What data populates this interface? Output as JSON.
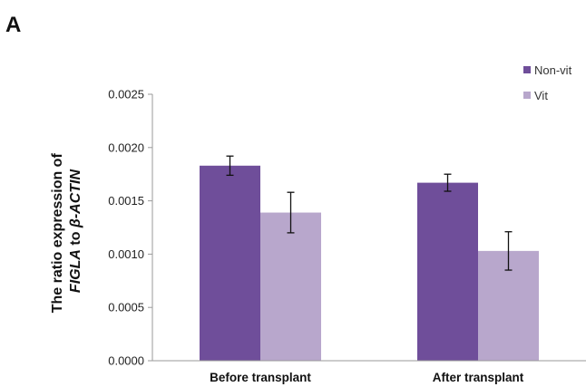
{
  "panel_label": "A",
  "colors": {
    "Non-vit": "#6f4e9a",
    "Vit": "#b8a7cc",
    "axis": "#9a9a9a",
    "errorbar": "#111111"
  },
  "chart_data": {
    "type": "bar",
    "categories": [
      "Before transplant",
      "After transplant"
    ],
    "series": [
      {
        "name": "Non-vit",
        "values": [
          0.00183,
          0.00167
        ],
        "errors": [
          9e-05,
          8e-05
        ]
      },
      {
        "name": "Vit",
        "values": [
          0.00139,
          0.00103
        ],
        "errors": [
          0.00019,
          0.00018
        ]
      }
    ],
    "ylabel_line1": "The ratio expression of",
    "ylabel_line2_parts": [
      "FIGLA",
      " to ",
      "β-ACTIN"
    ],
    "ylim": [
      0,
      0.0025
    ],
    "yticks": [
      "0.0000",
      "0.0005",
      "0.0010",
      "0.0015",
      "0.0020",
      "0.0025"
    ],
    "legend_position": "top-right",
    "grid": false
  }
}
